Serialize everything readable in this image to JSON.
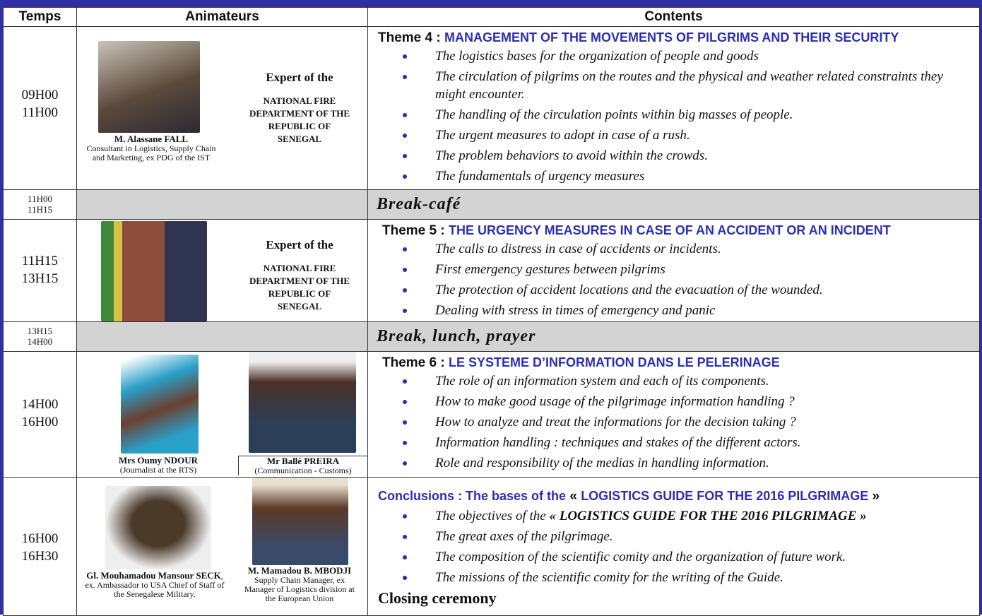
{
  "header": {
    "time": "Temps",
    "speakers": "Animateurs",
    "contents": "Contents"
  },
  "rows": [
    {
      "time": [
        "09H00",
        "11H00"
      ],
      "speakers": [
        {
          "name": "M. Alassane FALL",
          "role": "Consultant in Logistics, Supply Chain and Marketing, ex PDG of the IST"
        }
      ],
      "expert": {
        "title": "Expert of the",
        "org": "NATIONAL FIRE DEPARTMENT OF THE REPUBLIC OF SENEGAL"
      },
      "theme": {
        "label": "Theme 4 :",
        "title": "MANAGEMENT OF THE MOVEMENTS OF PILGRIMS AND THEIR SECURITY"
      },
      "items": [
        "The logistics bases for the organization of people and goods",
        "The circulation of pilgrims on the routes and the physical and weather related constraints they might encounter.",
        "The handling of the circulation points within big masses of people.",
        "The urgent measures to adopt in case of a rush.",
        "The problem behaviors to avoid within the crowds.",
        "The fundamentals of urgency measures"
      ]
    },
    {
      "time": [
        "11H00",
        "11H15"
      ],
      "break": "Break-café"
    },
    {
      "time": [
        "11H15",
        "13H15"
      ],
      "expert": {
        "title": "Expert of the",
        "org": "NATIONAL FIRE DEPARTMENT OF THE REPUBLIC OF SENEGAL"
      },
      "theme": {
        "label": "Theme 5 :",
        "title": "THE URGENCY MEASURES IN CASE OF AN ACCIDENT OR AN INCIDENT"
      },
      "items": [
        "The calls to distress in case of accidents or incidents.",
        "First emergency gestures between pilgrims",
        "The protection of accident locations and the evacuation of the wounded.",
        "Dealing with stress in times of emergency and panic"
      ]
    },
    {
      "time": [
        "13H15",
        "14H00"
      ],
      "break": "Break, lunch, prayer"
    },
    {
      "time": [
        "14H00",
        "16H00"
      ],
      "speakers": [
        {
          "name": "Mrs Oumy NDOUR",
          "role": "(Journalist at the RTS)"
        },
        {
          "name": "Mr Ballé PREIRA",
          "role": "(Communication - Customs)"
        }
      ],
      "theme": {
        "label": "Theme 6 :",
        "title": "LE SYSTEME D’INFORMATION DANS LE PELERINAGE"
      },
      "items": [
        "The role of an information system and each of its components.",
        "How to make good usage of the pilgrimage information handling ?",
        "How to analyze and treat the informations for the decision taking ?",
        "Information handling : techniques and stakes of the different actors.",
        "Role and responsibility of the medias in handling information."
      ]
    },
    {
      "time": [
        "16H00",
        "16H30"
      ],
      "speakers": [
        {
          "name": "Gl. Mouhamadou Mansour SECK",
          "role": ", ex. Ambassador to USA Chief of Staff of the Senegalese Military."
        },
        {
          "name": "M. Mamadou B. MBODJI",
          "role": "Supply Chain Manager, ex Manager of Logistics division at the European Union"
        }
      ],
      "conclusion": {
        "label": "Conclusions : The bases of the",
        "open": "«",
        "title": "LOGISTICS GUIDE FOR THE 2016 PILGRIMAGE",
        "close": "»"
      },
      "items": [
        {
          "text": "The objectives of the",
          "emph": "« LOGISTICS GUIDE FOR THE 2016 PILGRIMAGE »"
        },
        "The great axes of the pilgrimage.",
        "The composition of the scientific comity and the organization of future work.",
        "The missions of the scientific comity for the writing of the Guide."
      ],
      "closing": "Closing ceremony"
    }
  ]
}
